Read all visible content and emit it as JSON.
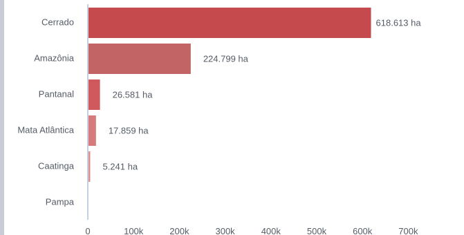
{
  "colors": {
    "axis": "#c5d0e2",
    "text": "#555c66",
    "border": "#c9ced6"
  },
  "chart_data": {
    "type": "bar",
    "orientation": "horizontal",
    "categories": [
      "Cerrado",
      "Amazônia",
      "Pantanal",
      "Mata Atlântica",
      "Caatinga",
      "Pampa"
    ],
    "values": [
      618613,
      224799,
      26581,
      17859,
      5241,
      0
    ],
    "data_labels": [
      "618.613 ha",
      "224.799 ha",
      "26.581 ha",
      "17.859 ha",
      "5.241 ha",
      ""
    ],
    "bar_colors": [
      "#c44a4d",
      "#c26466",
      "#d0595d",
      "#d67a7d",
      "#dc8e90",
      "#e3a5a6"
    ],
    "x_ticks": [
      0,
      100000,
      200000,
      300000,
      400000,
      500000,
      600000,
      700000
    ],
    "x_tick_labels": [
      "0",
      "100k",
      "200k",
      "300k",
      "400k",
      "500k",
      "600k",
      "700k"
    ],
    "xlim": [
      0,
      700000
    ],
    "title": "",
    "xlabel": "",
    "ylabel": "",
    "grid": false,
    "legend": "none"
  }
}
